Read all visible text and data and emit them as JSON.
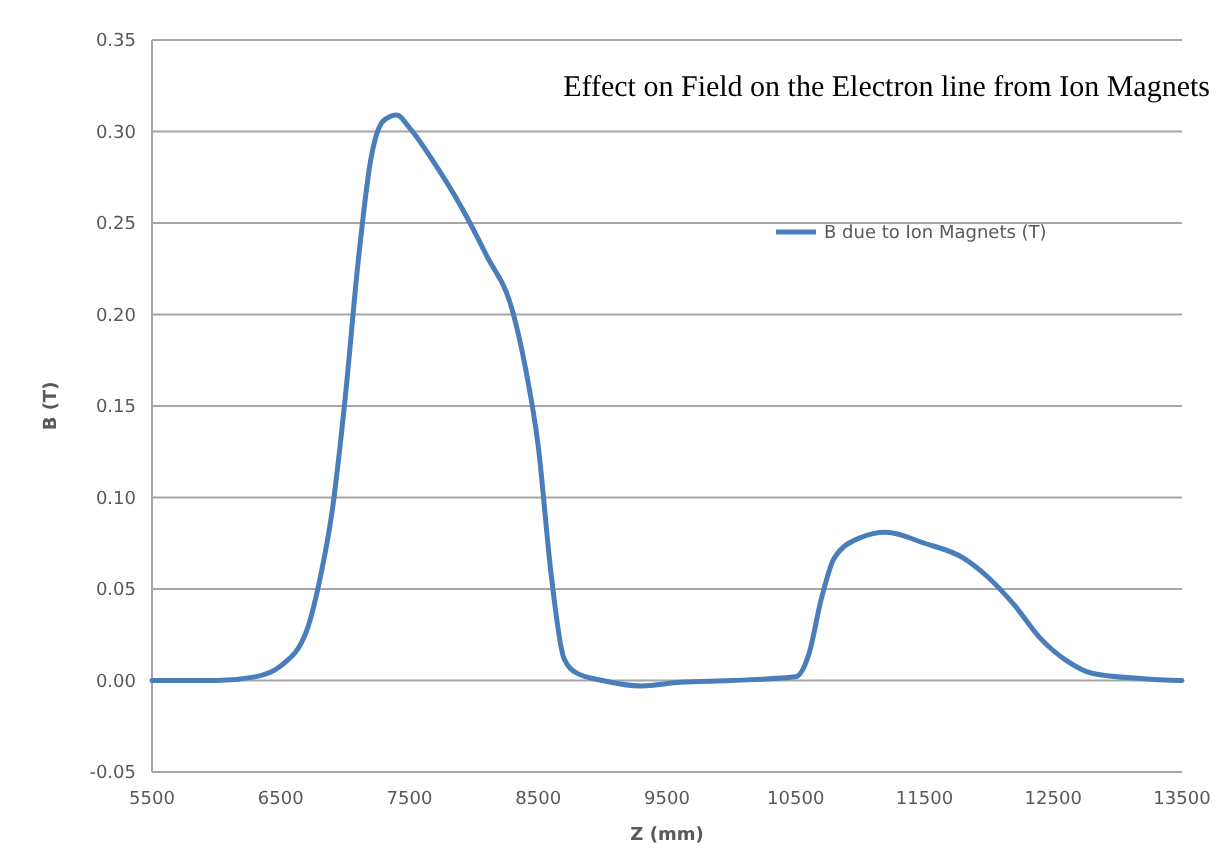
{
  "chart_data": {
    "type": "line",
    "title": "Effect on Field on the Electron line from Ion Magnets",
    "xlabel": "Z (mm)",
    "ylabel": "B (T)",
    "xlim": [
      5500,
      13500
    ],
    "xticks": [
      5500,
      6500,
      7500,
      8500,
      9500,
      10500,
      11500,
      12500,
      13500
    ],
    "ylim": [
      -0.05,
      0.35
    ],
    "yticks": [
      {
        "value": -0.05,
        "label": "-0.05"
      },
      {
        "value": 0,
        "label": "0.00"
      },
      {
        "value": 0.05,
        "label": "0.05"
      },
      {
        "value": 0.1,
        "label": "0.10"
      },
      {
        "value": 0.15,
        "label": "0.15"
      },
      {
        "value": 0.2,
        "label": "0.20"
      },
      {
        "value": 0.25,
        "label": "0.25"
      },
      {
        "value": 0.3,
        "label": "0.30"
      },
      {
        "value": 0.35,
        "label": "0.35"
      }
    ],
    "grid": "y",
    "legend": "top right",
    "marker": "none",
    "line_style": "solid",
    "x": [
      5500,
      6000,
      6300,
      6500,
      6700,
      6800,
      6900,
      7000,
      7100,
      7200,
      7300,
      7400,
      7500,
      7700,
      7900,
      8100,
      8300,
      8400,
      8500,
      8600,
      8700,
      8800,
      9000,
      9300,
      9600,
      10000,
      10500,
      10600,
      10700,
      10800,
      11000,
      11200,
      11500,
      11800,
      12000,
      12200,
      12400,
      12600,
      12800,
      13200,
      13500
    ],
    "series": [
      {
        "name": "B due to Ion Magnets (T)",
        "color": "#4a7ebb",
        "values": [
          0,
          0,
          0.002,
          0.008,
          0.027,
          0.054,
          0.093,
          0.154,
          0.228,
          0.285,
          0.306,
          0.309,
          0.302,
          0.282,
          0.259,
          0.232,
          0.202,
          0.171,
          0.128,
          0.058,
          0.012,
          0.004,
          0,
          -0.003,
          -0.001,
          0,
          0.002,
          0.014,
          0.045,
          0.067,
          0.078,
          0.081,
          0.075,
          0.067,
          0.056,
          0.041,
          0.023,
          0.011,
          0.004,
          0.001,
          0
        ]
      }
    ]
  }
}
